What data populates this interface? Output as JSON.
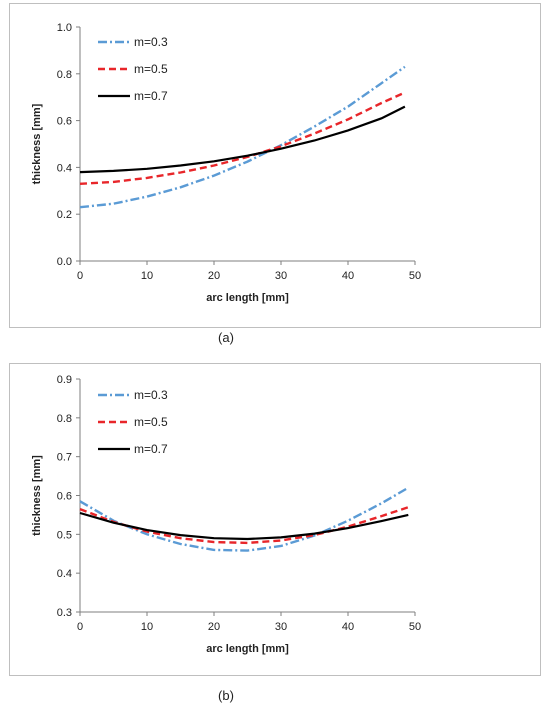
{
  "chart_data": [
    {
      "type": "line",
      "caption": "(a)",
      "xlabel": "arc length [mm]",
      "ylabel": "thickness [mm]",
      "xlim": [
        0,
        50
      ],
      "ylim": [
        0,
        1.0
      ],
      "xticks": [
        "0",
        "10",
        "20",
        "30",
        "40",
        "50"
      ],
      "yticks": [
        "0.0",
        "0.2",
        "0.4",
        "0.6",
        "0.8",
        "1.0"
      ],
      "grid": false,
      "legend_position": "top-left",
      "series": [
        {
          "name": "m=0.3",
          "color": "#5b9bd5",
          "style": "dashdot",
          "x": [
            0,
            5,
            10,
            15,
            20,
            25,
            30,
            35,
            40,
            45,
            48.5
          ],
          "y": [
            0.23,
            0.245,
            0.275,
            0.315,
            0.365,
            0.425,
            0.495,
            0.575,
            0.66,
            0.76,
            0.83
          ]
        },
        {
          "name": "m=0.5",
          "color": "#e8262a",
          "style": "dashed",
          "x": [
            0,
            5,
            10,
            15,
            20,
            25,
            30,
            35,
            40,
            45,
            48.5
          ],
          "y": [
            0.33,
            0.338,
            0.355,
            0.378,
            0.408,
            0.445,
            0.49,
            0.545,
            0.605,
            0.675,
            0.72
          ]
        },
        {
          "name": "m=0.7",
          "color": "#000000",
          "style": "solid",
          "x": [
            0,
            5,
            10,
            15,
            20,
            25,
            30,
            35,
            40,
            45,
            48.5
          ],
          "y": [
            0.38,
            0.385,
            0.394,
            0.408,
            0.426,
            0.45,
            0.48,
            0.515,
            0.558,
            0.61,
            0.66
          ]
        }
      ]
    },
    {
      "type": "line",
      "caption": "(b)",
      "xlabel": "arc length [mm]",
      "ylabel": "thickness [mm]",
      "xlim": [
        0,
        50
      ],
      "ylim": [
        0.3,
        0.9
      ],
      "xticks": [
        "0",
        "10",
        "20",
        "30",
        "40",
        "50"
      ],
      "yticks": [
        "0.3",
        "0.4",
        "0.5",
        "0.6",
        "0.7",
        "0.8",
        "0.9"
      ],
      "grid": false,
      "legend_position": "top-left",
      "series": [
        {
          "name": "m=0.3",
          "color": "#5b9bd5",
          "style": "dashdot",
          "x": [
            0,
            5,
            10,
            15,
            20,
            25,
            30,
            35,
            40,
            45,
            49
          ],
          "y": [
            0.585,
            0.535,
            0.5,
            0.475,
            0.46,
            0.458,
            0.47,
            0.497,
            0.535,
            0.58,
            0.62
          ]
        },
        {
          "name": "m=0.5",
          "color": "#e8262a",
          "style": "dashed",
          "x": [
            0,
            5,
            10,
            15,
            20,
            25,
            30,
            35,
            40,
            45,
            49
          ],
          "y": [
            0.565,
            0.532,
            0.507,
            0.49,
            0.48,
            0.478,
            0.484,
            0.498,
            0.52,
            0.547,
            0.57
          ]
        },
        {
          "name": "m=0.7",
          "color": "#000000",
          "style": "solid",
          "x": [
            0,
            5,
            10,
            15,
            20,
            25,
            30,
            35,
            40,
            45,
            49
          ],
          "y": [
            0.555,
            0.53,
            0.511,
            0.498,
            0.49,
            0.488,
            0.492,
            0.502,
            0.516,
            0.534,
            0.55
          ]
        }
      ]
    }
  ]
}
